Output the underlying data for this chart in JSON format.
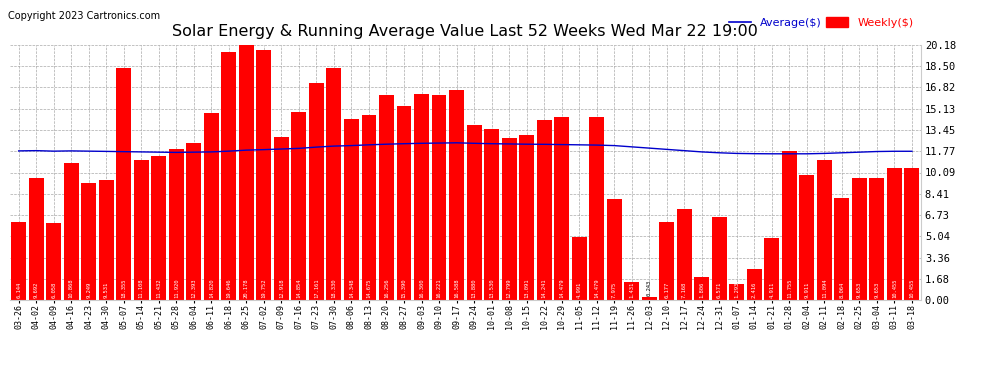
{
  "title": "Solar Energy & Running Average Value Last 52 Weeks Wed Mar 22 19:00",
  "copyright": "Copyright 2023 Cartronics.com",
  "y_ticks": [
    0.0,
    1.68,
    3.36,
    5.04,
    6.73,
    8.41,
    10.09,
    11.77,
    13.45,
    15.13,
    16.82,
    18.5,
    20.18
  ],
  "categories": [
    "03-26",
    "04-02",
    "04-09",
    "04-16",
    "04-23",
    "04-30",
    "05-07",
    "05-14",
    "05-21",
    "05-28",
    "06-04",
    "06-11",
    "06-18",
    "06-25",
    "07-02",
    "07-09",
    "07-16",
    "07-23",
    "07-30",
    "08-06",
    "08-13",
    "08-20",
    "08-27",
    "09-03",
    "09-10",
    "09-17",
    "09-24",
    "10-01",
    "10-08",
    "10-15",
    "10-22",
    "10-29",
    "11-05",
    "11-12",
    "11-19",
    "11-26",
    "12-03",
    "12-10",
    "12-17",
    "12-24",
    "12-31",
    "01-07",
    "01-14",
    "01-21",
    "01-28",
    "02-04",
    "02-11",
    "02-18",
    "02-25",
    "03-04",
    "03-11",
    "03-18"
  ],
  "weekly_values": [
    6.144,
    9.692,
    6.058,
    10.868,
    9.249,
    9.531,
    18.355,
    11.108,
    11.432,
    11.92,
    12.393,
    14.82,
    19.646,
    20.178,
    19.752,
    12.918,
    14.854,
    17.161,
    18.33,
    14.348,
    14.675,
    16.256,
    15.39,
    16.3,
    16.221,
    16.588,
    13.88,
    13.53,
    12.799,
    13.091,
    14.241,
    14.479,
    4.991,
    14.479,
    7.975,
    1.431,
    0.243,
    6.177,
    7.168,
    1.806,
    6.571,
    1.293,
    2.416,
    4.911,
    11.755,
    9.911,
    11.094,
    8.064,
    9.653,
    9.653,
    10.455,
    10.455
  ],
  "average_values": [
    11.8,
    11.82,
    11.78,
    11.8,
    11.78,
    11.76,
    11.74,
    11.72,
    11.7,
    11.68,
    11.7,
    11.72,
    11.78,
    11.86,
    11.9,
    11.95,
    12.0,
    12.1,
    12.18,
    12.22,
    12.28,
    12.33,
    12.37,
    12.4,
    12.42,
    12.44,
    12.4,
    12.37,
    12.35,
    12.33,
    12.32,
    12.3,
    12.28,
    12.26,
    12.22,
    12.12,
    12.02,
    11.92,
    11.82,
    11.72,
    11.65,
    11.6,
    11.58,
    11.57,
    11.57,
    11.57,
    11.6,
    11.65,
    11.7,
    11.75,
    11.77,
    11.77
  ],
  "bar_color": "#ff0000",
  "line_color": "#0000cc",
  "background_color": "#ffffff",
  "grid_color": "#aaaaaa",
  "title_fontsize": 11.5,
  "copyright_fontsize": 7,
  "legend_avg_color": "#0000cc",
  "legend_weekly_color": "#ff0000",
  "value_label_fontsize": 4.0
}
